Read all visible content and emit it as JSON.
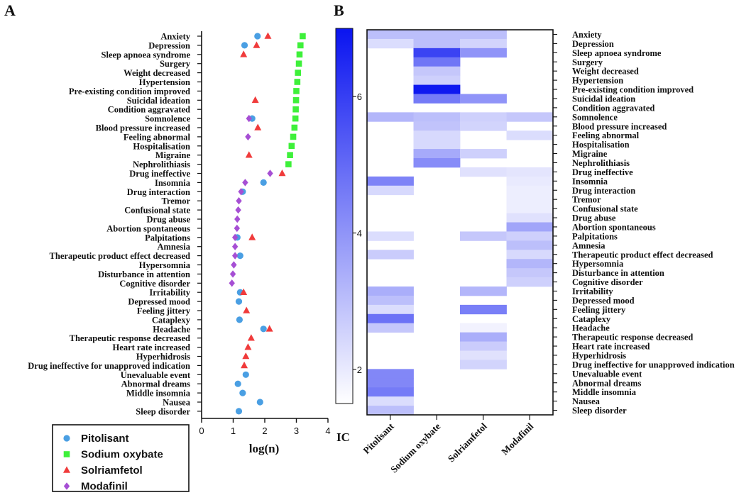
{
  "chart_data": [
    {
      "panel_label": "A",
      "type": "scatter",
      "xlabel": "log(n)",
      "xlim": [
        0,
        4
      ],
      "xticks": [
        "0",
        "1",
        "2",
        "3",
        "4"
      ],
      "categories": [
        "Anxiety",
        "Depression",
        "Sleep apnoea syndrome",
        "Surgery",
        "Weight decreased",
        "Hypertension",
        "Pre-existing condition improved",
        "Suicidal ideation",
        "Condition aggravated",
        "Somnolence",
        "Blood pressure increased",
        "Feeling abnormal",
        "Hospitalisation",
        "Migraine",
        "Nephrolithiasis",
        "Drug ineffective",
        "Insomnia",
        "Drug interaction",
        "Tremor",
        "Confusional state",
        "Drug abuse",
        "Abortion spontaneous",
        "Palpitations",
        "Amnesia",
        "Therapeutic product effect decreased",
        "Hypersomnia",
        "Disturbance in attention",
        "Cognitive disorder",
        "Irritability",
        "Depressed mood",
        "Feeling jittery",
        "Cataplexy",
        "Headache",
        "Therapeutic response decreased",
        "Heart rate increased",
        "Hyperhidrosis",
        "Drug ineffective for unapproved indication",
        "Unevaluable event",
        "Abnormal dreams",
        "Middle insomnia",
        "Nausea",
        "Sleep disorder"
      ],
      "series": [
        {
          "name": "Pitolisant",
          "color": "#4a9fe3",
          "marker": "circle",
          "values": [
            1.77,
            1.36,
            null,
            null,
            null,
            null,
            null,
            null,
            null,
            1.6,
            null,
            null,
            null,
            null,
            null,
            null,
            1.96,
            1.3,
            null,
            null,
            null,
            null,
            1.13,
            null,
            1.22,
            null,
            null,
            null,
            1.22,
            1.18,
            null,
            1.2,
            1.96,
            null,
            null,
            null,
            null,
            1.4,
            1.15,
            1.3,
            1.85,
            1.18
          ]
        },
        {
          "name": "Sodium oxybate",
          "color": "#3ef03a",
          "marker": "square",
          "values": [
            3.2,
            3.13,
            3.1,
            3.08,
            3.05,
            3.03,
            3.0,
            2.99,
            2.98,
            2.97,
            2.94,
            2.9,
            2.85,
            2.8,
            2.75,
            null,
            null,
            null,
            null,
            null,
            null,
            null,
            null,
            null,
            null,
            null,
            null,
            null,
            null,
            null,
            null,
            null,
            null,
            null,
            null,
            null,
            null,
            null,
            null,
            null,
            null,
            null
          ]
        },
        {
          "name": "Solriamfetol",
          "color": "#f03b3b",
          "marker": "triangle",
          "values": [
            2.1,
            1.74,
            1.33,
            null,
            null,
            null,
            null,
            1.7,
            null,
            null,
            1.78,
            null,
            null,
            1.5,
            null,
            2.55,
            null,
            null,
            null,
            null,
            null,
            null,
            1.6,
            null,
            null,
            null,
            null,
            null,
            1.33,
            null,
            1.42,
            null,
            2.15,
            1.57,
            1.47,
            1.4,
            1.35,
            null,
            null,
            null,
            null,
            null
          ]
        },
        {
          "name": "Modafinil",
          "color": "#a64fd4",
          "marker": "diamond",
          "values": [
            null,
            null,
            null,
            null,
            null,
            null,
            null,
            null,
            null,
            1.5,
            null,
            1.47,
            null,
            null,
            null,
            2.17,
            1.38,
            1.25,
            1.18,
            1.16,
            1.13,
            1.12,
            1.06,
            1.06,
            1.06,
            1.02,
            0.99,
            0.96,
            null,
            null,
            null,
            null,
            null,
            null,
            null,
            null,
            null,
            null,
            null,
            null,
            null,
            null
          ]
        }
      ]
    },
    {
      "panel_label": "B",
      "type": "heatmap",
      "colorbar_label": "IC",
      "colorbar_ticks": [
        "2",
        "4",
        "6"
      ],
      "clim": [
        1.5,
        7.0
      ],
      "columns": [
        "Pitolisant",
        "Sodium oxybate",
        "Solriamfetol",
        "Modafinil"
      ],
      "rows": [
        "Anxiety",
        "Depression",
        "Sleep apnoea syndrome",
        "Surgery",
        "Weight decreased",
        "Hypertension",
        "Pre-existing condition improved",
        "Suicidal ideation",
        "Condition aggravated",
        "Somnolence",
        "Blood pressure increased",
        "Feeling abnormal",
        "Hospitalisation",
        "Migraine",
        "Nephrolithiasis",
        "Drug ineffective",
        "Insomnia",
        "Drug interaction",
        "Tremor",
        "Confusional state",
        "Drug abuse",
        "Abortion spontaneous",
        "Palpitations",
        "Amnesia",
        "Therapeutic product effect decreased",
        "Hypersomnia",
        "Disturbance in attention",
        "Cognitive disorder",
        "Irritability",
        "Depressed mood",
        "Feeling jittery",
        "Cataplexy",
        "Headache",
        "Therapeutic response decreased",
        "Heart rate increased",
        "Hyperhidrosis",
        "Drug ineffective for unapproved indication",
        "Unevaluable event",
        "Abnormal dreams",
        "Middle insomnia",
        "Nausea",
        "Sleep disorder"
      ],
      "values": [
        [
          3.0,
          3.0,
          3.0,
          null
        ],
        [
          2.3,
          3.0,
          2.5,
          null
        ],
        [
          null,
          5.9,
          4.0,
          null
        ],
        [
          null,
          4.7,
          null,
          null
        ],
        [
          null,
          2.8,
          null,
          null
        ],
        [
          null,
          2.6,
          null,
          null
        ],
        [
          null,
          6.9,
          null,
          null
        ],
        [
          null,
          4.6,
          4.0,
          null
        ],
        [
          null,
          null,
          null,
          null
        ],
        [
          3.2,
          3.0,
          2.6,
          2.8
        ],
        [
          null,
          2.9,
          2.5,
          null
        ],
        [
          null,
          2.4,
          null,
          2.3
        ],
        [
          null,
          2.4,
          null,
          null
        ],
        [
          null,
          3.5,
          2.6,
          null
        ],
        [
          null,
          4.2,
          null,
          null
        ],
        [
          null,
          null,
          2.2,
          2.1
        ],
        [
          4.4,
          null,
          null,
          2.0
        ],
        [
          2.4,
          null,
          null,
          1.9
        ],
        [
          null,
          null,
          null,
          1.9
        ],
        [
          null,
          null,
          null,
          1.9
        ],
        [
          null,
          null,
          null,
          2.2
        ],
        [
          null,
          null,
          null,
          3.6
        ],
        [
          2.3,
          null,
          2.8,
          2.6
        ],
        [
          null,
          null,
          null,
          3.0
        ],
        [
          2.7,
          null,
          null,
          2.4
        ],
        [
          null,
          null,
          null,
          3.2
        ],
        [
          null,
          null,
          null,
          2.8
        ],
        [
          null,
          null,
          null,
          2.6
        ],
        [
          3.4,
          null,
          3.2,
          null
        ],
        [
          3.0,
          null,
          null,
          null
        ],
        [
          2.3,
          null,
          4.5,
          null
        ],
        [
          4.8,
          null,
          null,
          null
        ],
        [
          2.8,
          null,
          1.8,
          null
        ],
        [
          null,
          null,
          3.4,
          null
        ],
        [
          null,
          null,
          2.7,
          null
        ],
        [
          null,
          null,
          2.2,
          null
        ],
        [
          null,
          null,
          2.5,
          null
        ],
        [
          4.3,
          null,
          null,
          null
        ],
        [
          4.3,
          null,
          null,
          null
        ],
        [
          4.6,
          null,
          null,
          null
        ],
        [
          2.3,
          null,
          null,
          null
        ],
        [
          3.0,
          null,
          null,
          null
        ]
      ]
    }
  ]
}
